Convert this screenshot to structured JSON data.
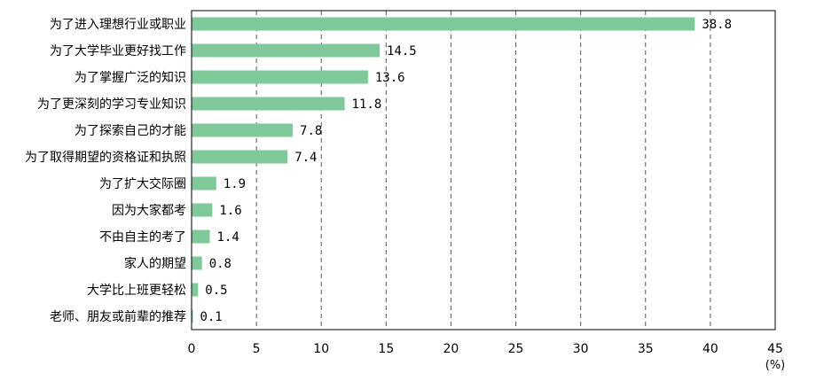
{
  "chart_data": {
    "type": "bar",
    "orientation": "horizontal",
    "categories": [
      "为了进入理想行业或职业",
      "为了大学毕业更好找工作",
      "为了掌握广泛的知识",
      "为了更深刻的学习专业知识",
      "为了探索自己的才能",
      "为了取得期望的资格证和执照",
      "为了扩大交际圈",
      "因为大家都考",
      "不由自主的考了",
      "家人的期望",
      "大学比上班更轻松",
      "老师、朋友或前辈的推荐"
    ],
    "values": [
      38.8,
      14.5,
      13.6,
      11.8,
      7.8,
      7.4,
      1.9,
      1.6,
      1.4,
      0.8,
      0.5,
      0.1
    ],
    "value_labels": [
      "38.8",
      "14.5",
      "13.6",
      "11.8",
      "7.8",
      "7.4",
      "1.9",
      "1.6",
      "1.4",
      "0.8",
      "0.5",
      "0.1"
    ],
    "xlim": [
      0,
      45
    ],
    "xticks": [
      0,
      5,
      10,
      15,
      20,
      25,
      30,
      35,
      40,
      45
    ],
    "xunit": "(%)",
    "grid": "vertical dashed",
    "bar_color": "#7ec89a",
    "grid_color": "#555555"
  }
}
